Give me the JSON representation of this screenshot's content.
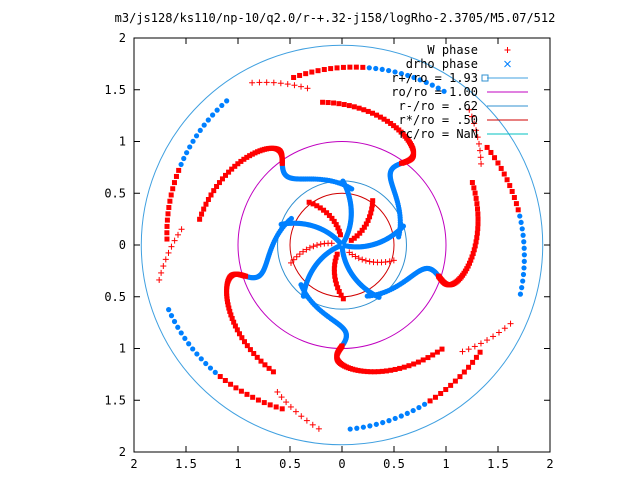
{
  "chart_data": {
    "type": "scatter",
    "title": "m3/js128/ks110/np-10/q2.0/r-+.32-j158/logRho-2.3705/M5.07/512",
    "xlim": [
      2,
      -2
    ],
    "ylim": [
      -2,
      2
    ],
    "x_ticks": [
      "2",
      "1.5",
      "1",
      "0.5",
      "0",
      "0.5",
      "1",
      "1.5",
      "2"
    ],
    "y_ticks": [
      "2",
      "1.5",
      "1",
      "0.5",
      "0",
      "0.5",
      "1",
      "1.5",
      "2"
    ],
    "colors": {
      "red": "#ff0000",
      "blue": "#0080ff",
      "purple": "#c000c0",
      "cyan": "#00c0c0",
      "lightblue": "#40a0e0"
    },
    "series": [
      {
        "name": "W phase",
        "marker": "plus",
        "color": "#ff0000"
      },
      {
        "name": "drho phase",
        "marker": "cross",
        "color": "#0080ff"
      }
    ],
    "circles": [
      {
        "name": "r+/ro = 1.93",
        "radius": 1.93,
        "color": "#40a0e0"
      },
      {
        "name": "ro/ro = 1.00",
        "radius": 1.0,
        "color": "#c000c0"
      },
      {
        "name": "r-/ro = .62",
        "radius": 0.62,
        "color": "#3090d0"
      },
      {
        "name": "r*/ro = .50",
        "radius": 0.5,
        "color": "#d00000"
      },
      {
        "name": "rc/ro = NaN",
        "radius": null,
        "color": "#00c0c0"
      }
    ],
    "spiral_arms": 5,
    "grid": false,
    "legend_position": "top-right"
  }
}
